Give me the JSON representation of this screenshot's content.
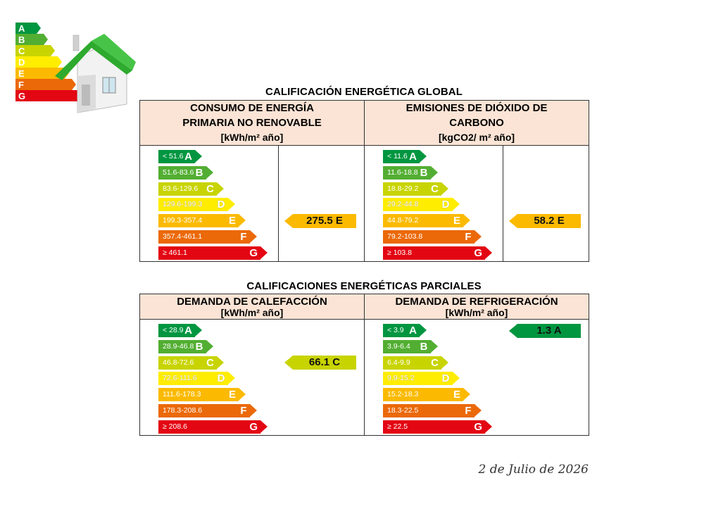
{
  "logo": {
    "letters": [
      "A",
      "B",
      "C",
      "D",
      "E",
      "F",
      "G"
    ]
  },
  "global": {
    "title": "CALIFICACIÓN ENERGÉTICA GLOBAL",
    "consumo": {
      "header_line1": "CONSUMO DE ENERGÍA",
      "header_line2": "PRIMARIA NO RENOVABLE",
      "unit": "[kWh/m² año]",
      "bars": [
        {
          "range": "< 51.6",
          "letter": "A",
          "color": "#009640"
        },
        {
          "range": "51.6-83.6",
          "letter": "B",
          "color": "#52ae32"
        },
        {
          "range": "83.6-129.6",
          "letter": "C",
          "color": "#c8d400"
        },
        {
          "range": "129.6-199.3",
          "letter": "D",
          "color": "#ffed00"
        },
        {
          "range": "199.3-357.4",
          "letter": "E",
          "color": "#fbba00"
        },
        {
          "range": "357.4-461.1",
          "letter": "F",
          "color": "#eb6909"
        },
        {
          "range": "≥ 461.1",
          "letter": "G",
          "color": "#e30613"
        }
      ],
      "indicator": {
        "value": "275.5 E",
        "color": "#fbba00",
        "level": "E"
      }
    },
    "emisiones": {
      "header_line1": "EMISIONES DE DIÓXIDO DE",
      "header_line2": "CARBONO",
      "unit": "[kgCO2/ m² año]",
      "bars": [
        {
          "range": "< 11.6",
          "letter": "A",
          "color": "#009640"
        },
        {
          "range": "11.6-18.8",
          "letter": "B",
          "color": "#52ae32"
        },
        {
          "range": "18.8-29.2",
          "letter": "C",
          "color": "#c8d400"
        },
        {
          "range": "29.2-44.8",
          "letter": "D",
          "color": "#ffed00"
        },
        {
          "range": "44.8-79.2",
          "letter": "E",
          "color": "#fbba00"
        },
        {
          "range": "79.2-103.8",
          "letter": "F",
          "color": "#eb6909"
        },
        {
          "range": "≥ 103.8",
          "letter": "G",
          "color": "#e30613"
        }
      ],
      "indicator": {
        "value": "58.2 E",
        "color": "#fbba00",
        "level": "E"
      }
    }
  },
  "partial": {
    "title": "CALIFICACIONES ENERGÉTICAS PARCIALES",
    "calefaccion": {
      "header_line1": "DEMANDA DE CALEFACCIÓN",
      "unit": "[kWh/m² año]",
      "bars": [
        {
          "range": "< 28.9",
          "letter": "A",
          "color": "#009640"
        },
        {
          "range": "28.9-46.8",
          "letter": "B",
          "color": "#52ae32"
        },
        {
          "range": "46.8-72.6",
          "letter": "C",
          "color": "#c8d400"
        },
        {
          "range": "72.6-111.6",
          "letter": "D",
          "color": "#ffed00"
        },
        {
          "range": "111.6-178.3",
          "letter": "E",
          "color": "#fbba00"
        },
        {
          "range": "178.3-208.6",
          "letter": "F",
          "color": "#eb6909"
        },
        {
          "range": "≥ 208.6",
          "letter": "G",
          "color": "#e30613"
        }
      ],
      "indicator": {
        "value": "66.1 C",
        "color": "#c8d400",
        "level": "C"
      }
    },
    "refrigeracion": {
      "header_line1": "DEMANDA DE REFRIGERACIÓN",
      "unit": "[kWh/m² año]",
      "bars": [
        {
          "range": "< 3.9",
          "letter": "A",
          "color": "#009640"
        },
        {
          "range": "3.9-6.4",
          "letter": "B",
          "color": "#52ae32"
        },
        {
          "range": "6.4-9.9",
          "letter": "C",
          "color": "#c8d400"
        },
        {
          "range": "9.9-15.2",
          "letter": "D",
          "color": "#ffed00"
        },
        {
          "range": "15.2-18.3",
          "letter": "E",
          "color": "#fbba00"
        },
        {
          "range": "18.3-22.5",
          "letter": "F",
          "color": "#eb6909"
        },
        {
          "range": "≥ 22.5",
          "letter": "G",
          "color": "#e30613"
        }
      ],
      "indicator": {
        "value": "1.3 A",
        "color": "#009640",
        "level": "A"
      }
    }
  },
  "date": "2 de Julio de 2026"
}
